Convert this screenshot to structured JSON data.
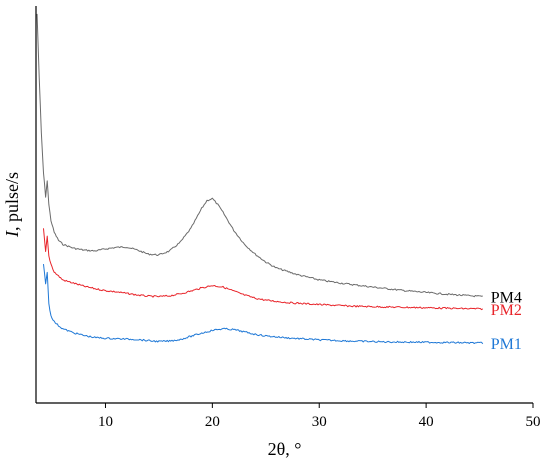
{
  "chart_data": {
    "type": "line",
    "xlabel": "2θ, °",
    "ylabel_italic": "I",
    "ylabel_rest": ", pulse/s",
    "xlim": [
      3.5,
      50
    ],
    "ylim": [
      0,
      100
    ],
    "xticks": [
      10,
      20,
      30,
      40,
      50
    ],
    "yticks_shown": false,
    "grid": false,
    "legend": "inline-right",
    "series": [
      {
        "name": "PM4",
        "color": "#6b6b6b",
        "x": [
          3.6,
          3.8,
          4.0,
          4.2,
          4.4,
          4.55,
          4.7,
          4.9,
          5.2,
          5.6,
          6,
          7,
          8,
          9,
          10,
          11,
          12,
          13,
          14,
          15,
          16,
          17,
          18,
          18.5,
          19,
          19.5,
          20,
          20.5,
          21,
          22,
          23,
          24,
          25,
          26,
          28,
          30,
          32,
          35,
          38,
          41,
          43,
          45.3
        ],
        "y": [
          98,
          82,
          68,
          58,
          52,
          56,
          50,
          46,
          43,
          41,
          40,
          39,
          38.5,
          38.3,
          38.8,
          39.2,
          39.3,
          38.5,
          37.5,
          37.3,
          38.3,
          40.5,
          44,
          46.5,
          49,
          51,
          51.5,
          50,
          48,
          43.5,
          40,
          37.5,
          35.5,
          34,
          32.3,
          31,
          30.2,
          29.2,
          28.3,
          27.6,
          27.2,
          26.8
        ]
      },
      {
        "name": "PM2",
        "color": "#e8242a",
        "x": [
          4.2,
          4.4,
          4.55,
          4.7,
          4.9,
          5.2,
          5.6,
          6,
          7,
          8,
          9,
          10,
          11,
          12,
          13,
          14,
          15,
          16,
          17,
          18,
          19,
          20,
          21,
          22,
          23,
          24,
          25,
          27,
          30,
          33,
          36,
          40,
          43,
          45.3
        ],
        "y": [
          44,
          38,
          42,
          37,
          35,
          33,
          32,
          31,
          30.2,
          29.4,
          28.8,
          28.3,
          28,
          27.6,
          27.2,
          26.9,
          26.8,
          27,
          27.5,
          28.2,
          29,
          29.6,
          29.2,
          28.2,
          27.2,
          26.4,
          25.9,
          25.3,
          24.8,
          24.4,
          24.2,
          24,
          23.8,
          23.7
        ]
      },
      {
        "name": "PM1",
        "color": "#1f78d6",
        "x": [
          4.2,
          4.4,
          4.55,
          4.7,
          4.9,
          5.2,
          5.6,
          6,
          7,
          8,
          9,
          10,
          11,
          12,
          13,
          14,
          15,
          16,
          17,
          18,
          19,
          20,
          21,
          22,
          23,
          24,
          25,
          27,
          30,
          33,
          36,
          40,
          43,
          45.3
        ],
        "y": [
          35,
          30,
          33,
          25,
          22,
          20.5,
          19.5,
          18.7,
          17.7,
          17,
          16.5,
          16.3,
          16.2,
          16.1,
          16,
          15.7,
          15.5,
          15.6,
          16,
          16.8,
          17.6,
          18.3,
          18.7,
          18.5,
          17.9,
          17.3,
          16.9,
          16.4,
          15.9,
          15.6,
          15.4,
          15.3,
          15.2,
          15.1
        ]
      }
    ],
    "colors": {
      "axis": "#000000"
    }
  }
}
